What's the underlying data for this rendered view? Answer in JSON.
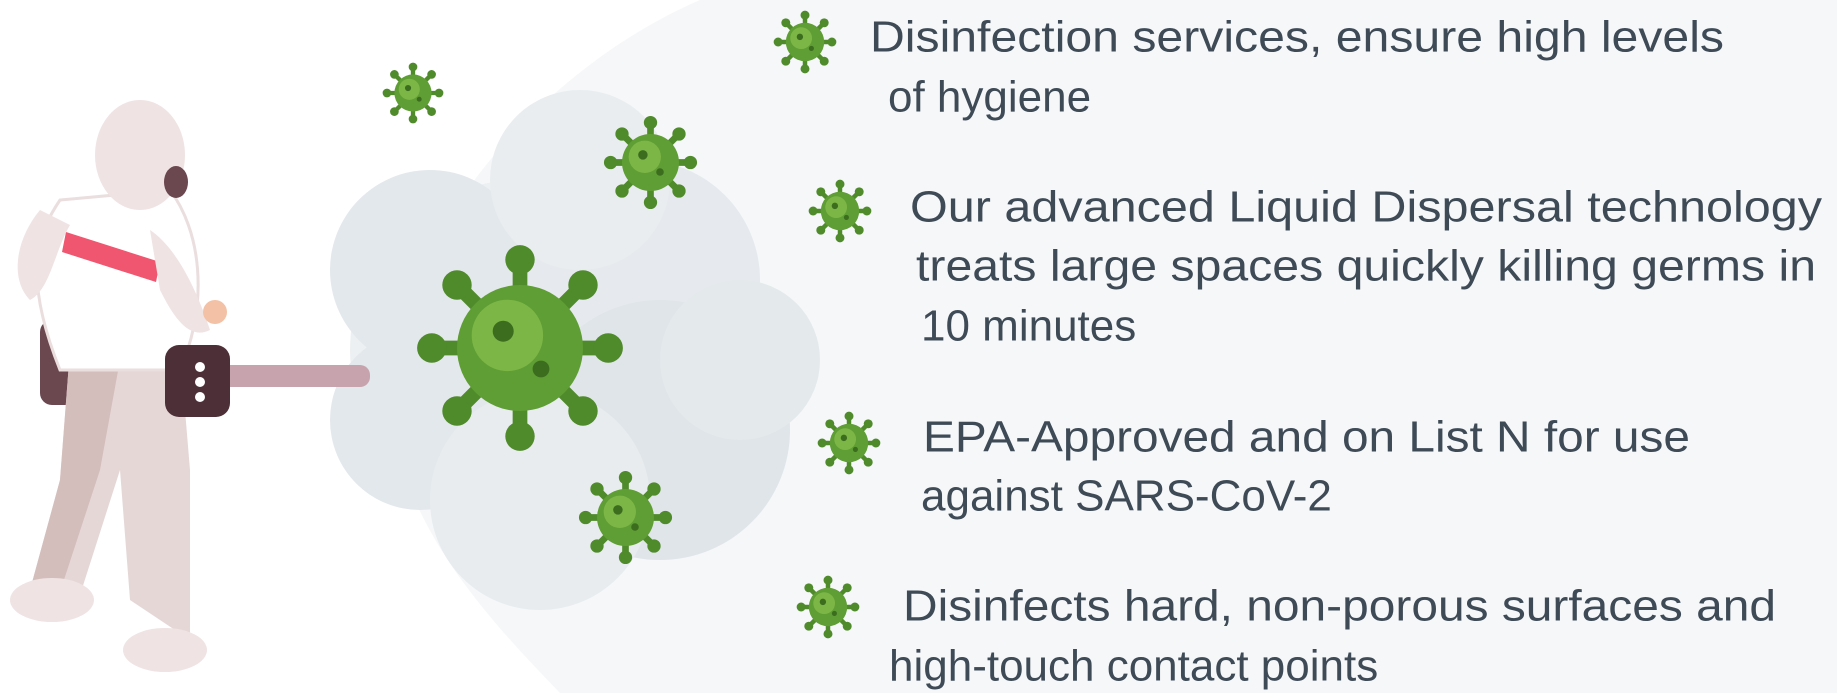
{
  "items": [
    {
      "lines": [
        "Disinfection services, ensure high levels",
        "of hygiene"
      ]
    },
    {
      "lines": [
        "Our advanced Liquid Dispersal technology",
        "treats large spaces quickly killing germs in",
        "10 minutes"
      ]
    },
    {
      "lines": [
        "EPA-Approved and on List N for use",
        "against SARS-CoV-2"
      ]
    },
    {
      "lines": [
        "Disinfects hard, non-porous surfaces and",
        "high-touch contact points"
      ]
    }
  ]
}
